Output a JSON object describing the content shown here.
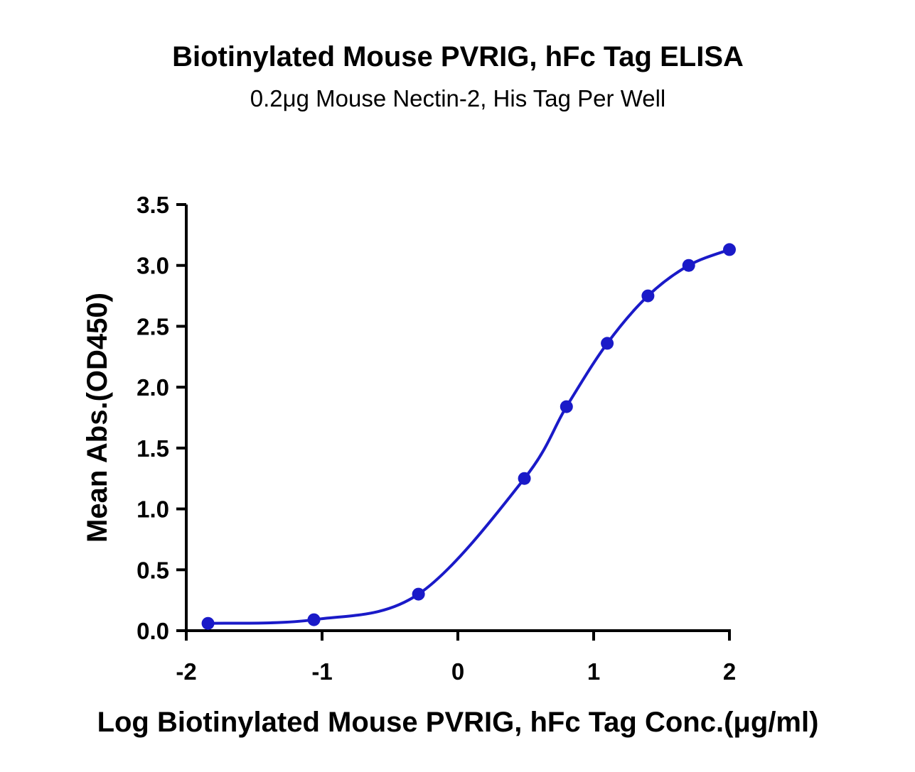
{
  "chart_data": {
    "type": "line",
    "title": "Biotinylated Mouse PVRIG, hFc Tag ELISA",
    "subtitle": "0.2μg Mouse Nectin-2, His Tag Per Well",
    "xlabel": "Log Biotinylated Mouse PVRIG, hFc  Tag Conc.(μg/ml)",
    "ylabel": "Mean Abs.(OD450)",
    "xlim": [
      -2,
      2
    ],
    "ylim": [
      0,
      3.5
    ],
    "xticks": [
      "-2",
      "-1",
      "0",
      "1",
      "2"
    ],
    "xtick_values": [
      -2,
      -1,
      0,
      1,
      2
    ],
    "yticks": [
      "0.0",
      "0.5",
      "1.0",
      "1.5",
      "2.0",
      "2.5",
      "3.0",
      "3.5"
    ],
    "ytick_values": [
      0,
      0.5,
      1,
      1.5,
      2,
      2.5,
      3,
      3.5
    ],
    "grid": false,
    "series": [
      {
        "name": "Biotinylated Mouse PVRIG, hFc Tag",
        "color": "#1a1ac8",
        "x": [
          -1.84,
          -1.06,
          -0.29,
          0.49,
          0.8,
          1.1,
          1.4,
          1.7,
          2.0
        ],
        "y": [
          0.06,
          0.09,
          0.3,
          1.25,
          1.84,
          2.36,
          2.75,
          3.0,
          3.13
        ]
      }
    ]
  }
}
